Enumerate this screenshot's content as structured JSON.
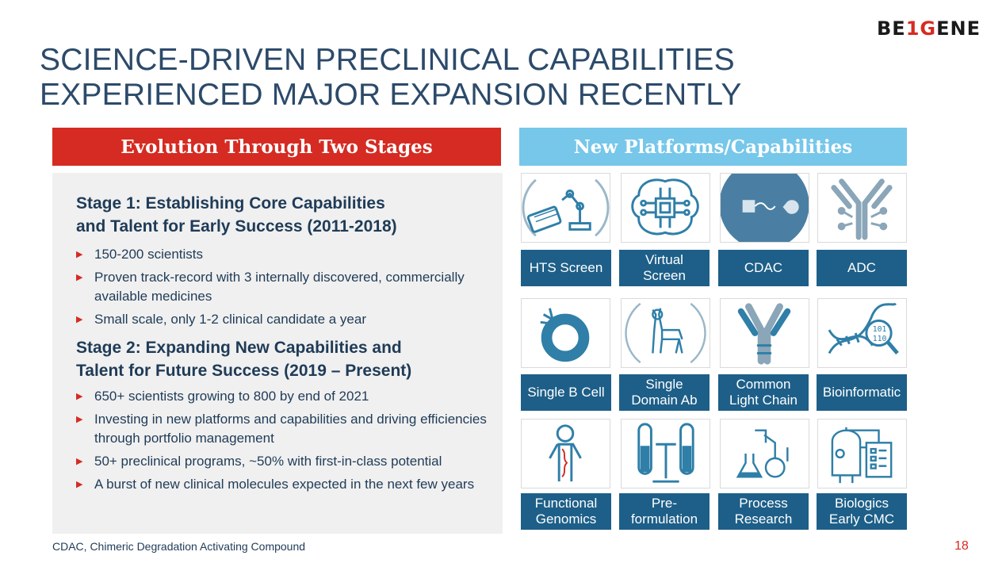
{
  "logo": {
    "part1": "BE",
    "part2": "1G",
    "part3": "ENE"
  },
  "title": {
    "line1": "SCIENCE-DRIVEN PRECLINICAL CAPABILITIES",
    "line2": "EXPERIENCED MAJOR EXPANSION RECENTLY"
  },
  "left": {
    "header": "Evolution Through Two Stages",
    "stage1": {
      "title_line1": "Stage 1: Establishing Core Capabilities",
      "title_line2": "and Talent for Early Success (2011-2018)",
      "bullets": [
        "150-200 scientists",
        "Proven track-record with 3 internally discovered, commercially available medicines",
        "Small scale, only 1-2 clinical candidate a year"
      ]
    },
    "stage2": {
      "title_line1": "Stage 2: Expanding New Capabilities and",
      "title_line2": "Talent for Future Success (2019 – Present)",
      "bullets": [
        "650+ scientists growing to 800 by end of 2021",
        "Investing in new platforms and capabilities and driving efficiencies through portfolio management",
        "50+ preclinical programs, ~50% with first-in-class potential",
        "A burst of new clinical molecules expected in the next few years"
      ]
    }
  },
  "right": {
    "header": "New Platforms/Capabilities",
    "tiles": [
      "HTS Screen",
      "Virtual\nScreen",
      "CDAC",
      "ADC",
      "Single B Cell",
      "Single\nDomain Ab",
      "Common\nLight Chain",
      "Bioinformatic",
      "Functional\nGenomics",
      "Pre-\nformulation",
      "Process\nResearch",
      "Biologics\nEarly CMC"
    ],
    "icons": [
      "robot-arm-icon",
      "brain-chip-icon",
      "molecule-link-icon",
      "antibody-icon",
      "b-cell-ring-icon",
      "llama-icon",
      "light-chain-antibody-icon",
      "dna-binary-icon",
      "child-dna-icon",
      "test-tubes-icon",
      "lab-flask-icon",
      "bioreactor-icon"
    ],
    "binary_text": [
      "101",
      "110"
    ]
  },
  "footnote": "CDAC, Chimeric Degradation Activating Compound",
  "page_number": "18",
  "colors": {
    "red": "#d52b22",
    "light_blue": "#76c7ea",
    "tile_blue": "#1d5f88",
    "icon_blue": "#2f7fa8",
    "title": "#2c4a6a"
  }
}
